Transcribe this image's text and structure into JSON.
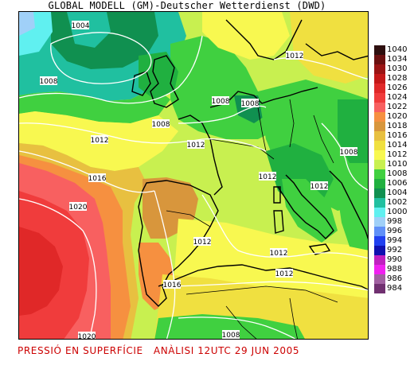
{
  "header": {
    "title": "GLOBAL MODELL (GM)-Deutscher Wetterdienst (DWD)"
  },
  "footer": {
    "caption": "PRESSIÓ EN SUPERFÍCIE   ANÀLISI 12UTC 29 JUN 2005"
  },
  "legend": {
    "items": [
      {
        "label": "1040",
        "color": "#2e0f0f"
      },
      {
        "label": "1034",
        "color": "#6b1010"
      },
      {
        "label": "1030",
        "color": "#9a1414"
      },
      {
        "label": "1028",
        "color": "#c41818"
      },
      {
        "label": "1026",
        "color": "#e02828"
      },
      {
        "label": "1024",
        "color": "#f03c3c"
      },
      {
        "label": "1022",
        "color": "#f86060"
      },
      {
        "label": "1020",
        "color": "#f69040"
      },
      {
        "label": "1018",
        "color": "#d8963c"
      },
      {
        "label": "1016",
        "color": "#e8c040"
      },
      {
        "label": "1014",
        "color": "#f0e040"
      },
      {
        "label": "1012",
        "color": "#f8f850"
      },
      {
        "label": "1010",
        "color": "#c8f050"
      },
      {
        "label": "1008",
        "color": "#40d040"
      },
      {
        "label": "1006",
        "color": "#20b040"
      },
      {
        "label": "1004",
        "color": "#109050"
      },
      {
        "label": "1002",
        "color": "#20c0a0"
      },
      {
        "label": "1000",
        "color": "#60f0f0"
      },
      {
        "label": "998",
        "color": "#a0d0f8"
      },
      {
        "label": "996",
        "color": "#6090f8"
      },
      {
        "label": "994",
        "color": "#2040f0"
      },
      {
        "label": "992",
        "color": "#1010b0"
      },
      {
        "label": "990",
        "color": "#c020c0"
      },
      {
        "label": "988",
        "color": "#f020f0"
      },
      {
        "label": "986",
        "color": "#a060a0"
      },
      {
        "label": "984",
        "color": "#703070"
      }
    ]
  },
  "isobars": [
    {
      "label": "1004"
    },
    {
      "label": "1008"
    },
    {
      "label": "1008"
    },
    {
      "label": "1008"
    },
    {
      "label": "1008"
    },
    {
      "label": "1012"
    },
    {
      "label": "1012"
    },
    {
      "label": "1012"
    },
    {
      "label": "1012"
    },
    {
      "label": "1012"
    },
    {
      "label": "1012"
    },
    {
      "label": "1012"
    },
    {
      "label": "1012"
    },
    {
      "label": "1016"
    },
    {
      "label": "1016"
    },
    {
      "label": "1020"
    },
    {
      "label": "1020"
    },
    {
      "label": "1008"
    },
    {
      "label": "1008"
    }
  ]
}
